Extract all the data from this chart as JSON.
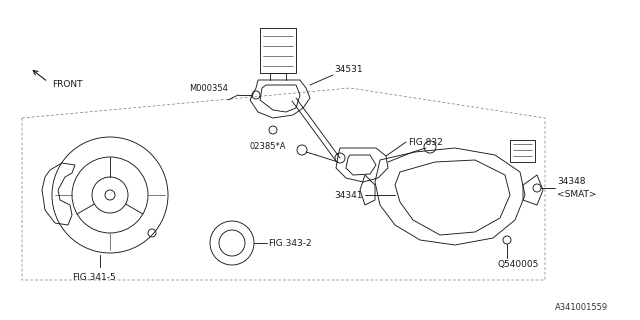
{
  "bg_color": "#ffffff",
  "line_color": "#1a1a1a",
  "fig_width": 6.4,
  "fig_height": 3.2,
  "dpi": 100,
  "labels": {
    "front": "FRONT",
    "m000354": "M000354",
    "fig832": "FIG.832",
    "s34531": "34531",
    "s02385a": "02385*A",
    "fig341_5": "FIG.341-5",
    "fig343_2": "FIG.343-2",
    "s34341": "34341",
    "s34348": "34348",
    "smat": "<SMAT>",
    "q540005": "Q540005",
    "ref": "A341001559"
  },
  "font_size": 6.0,
  "ref_font_size": 6.0
}
